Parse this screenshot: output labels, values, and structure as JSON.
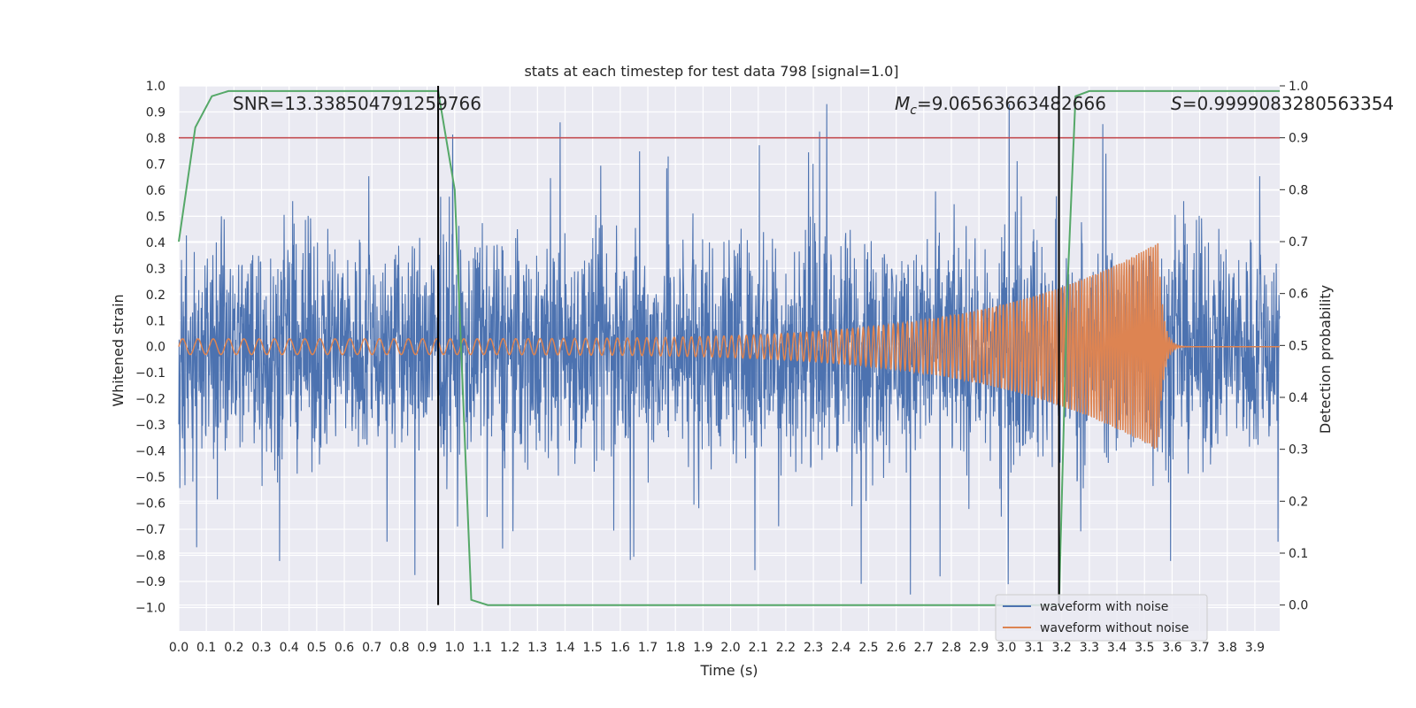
{
  "chart_data": {
    "type": "line",
    "title": "stats at each timestep for test data 798 [signal=1.0]",
    "xlabel": "Time (s)",
    "ylabel": "Whitened strain",
    "ylabel_right": "Detection probability",
    "xlim": [
      0.0,
      3.99
    ],
    "ylim": [
      -1.09,
      1.0
    ],
    "ylim_right": [
      -0.05,
      1.0
    ],
    "x_ticks": [
      "0.0",
      "0.1",
      "0.2",
      "0.3",
      "0.4",
      "0.5",
      "0.6",
      "0.7",
      "0.8",
      "0.9",
      "1.0",
      "1.1",
      "1.2",
      "1.3",
      "1.4",
      "1.5",
      "1.6",
      "1.7",
      "1.8",
      "1.9",
      "2.0",
      "2.1",
      "2.2",
      "2.3",
      "2.4",
      "2.5",
      "2.6",
      "2.7",
      "2.8",
      "2.9",
      "3.0",
      "3.1",
      "3.2",
      "3.3",
      "3.4",
      "3.5",
      "3.6",
      "3.7",
      "3.8",
      "3.9"
    ],
    "y_ticks_left": [
      "1.0",
      "0.9",
      "0.8",
      "0.7",
      "0.6",
      "0.5",
      "0.4",
      "0.3",
      "0.2",
      "0.1",
      "0.0",
      "−0.1",
      "−0.2",
      "−0.3",
      "−0.4",
      "−0.5",
      "−0.6",
      "−0.7",
      "−0.8",
      "−0.9",
      "−1.0"
    ],
    "y_ticks_right": [
      "1.0",
      "0.9",
      "0.8",
      "0.7",
      "0.6",
      "0.5",
      "0.4",
      "0.3",
      "0.2",
      "0.1",
      "0.0"
    ],
    "annotations": {
      "snr": "SNR=13.338504791259766",
      "mc_symbol": "M",
      "mc_sub": "c",
      "mc_value": "=9.06563663482666",
      "s_symbol": "S",
      "s_value": "=0.9999083280563354"
    },
    "series": [
      {
        "name": "waveform with noise",
        "color": "#4c72b0",
        "description": "dense noisy strain, roughly within -0.9..0.9"
      },
      {
        "name": "waveform without noise",
        "color": "#dd8452",
        "chirp": {
          "start_amplitude": 0.03,
          "end_amplitude": 0.4,
          "merger_time": 3.55,
          "start_freq_hz": 18,
          "end_freq_hz": 120
        }
      },
      {
        "name": "detection probability",
        "color": "#55a868",
        "axis": "right",
        "x": [
          0.0,
          0.06,
          0.12,
          0.18,
          0.6,
          0.94,
          1.0,
          1.06,
          1.12,
          1.5,
          3.19,
          3.22,
          3.25,
          3.3,
          3.99
        ],
        "y": [
          0.7,
          0.92,
          0.98,
          0.99,
          0.99,
          0.99,
          0.8,
          0.01,
          0.0,
          0.0,
          0.0,
          0.6,
          0.98,
          0.99,
          0.99
        ]
      }
    ],
    "hlines": [
      {
        "axis": "right",
        "value": 0.9,
        "color": "#c44e52"
      }
    ],
    "vlines": [
      {
        "x": 0.94,
        "color": "#000000"
      },
      {
        "x": 3.19,
        "color": "#000000"
      }
    ],
    "legend": {
      "location": "lower-right",
      "entries": [
        "waveform with noise",
        "waveform without noise"
      ]
    },
    "colors": {
      "plot_bg": "#eaeaf2",
      "grid": "#ffffff"
    }
  }
}
